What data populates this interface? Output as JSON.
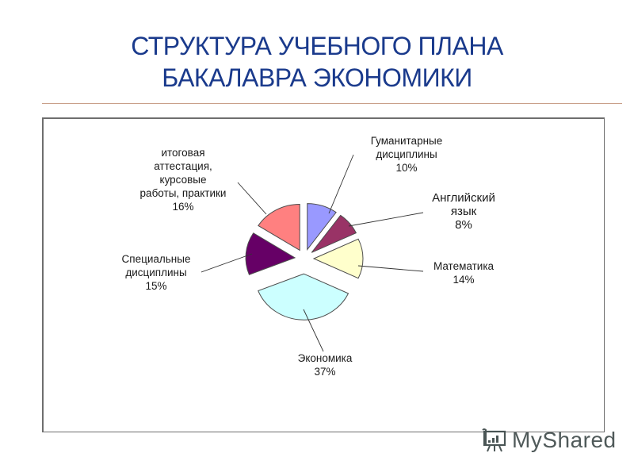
{
  "title": {
    "line1": "СТРУКТУРА УЧЕБНОГО ПЛАНА",
    "line2": "БАКАЛАВРА ЭКОНОМИКИ"
  },
  "labels": {
    "humanities": {
      "name1": "Гуманитарные",
      "name2": "дисциплины",
      "pct": "10%"
    },
    "english": {
      "name1": "Английский",
      "name2": "язык",
      "pct": "8%"
    },
    "math": {
      "name1": "Математика",
      "pct": "14%"
    },
    "economics": {
      "name1": "Экономика",
      "pct": "37%"
    },
    "special": {
      "name1": "Специальные",
      "name2": "дисциплины",
      "pct": "15%"
    },
    "final": {
      "name1": "итоговая",
      "name2": "аттестация,",
      "name3": "курсовые",
      "name4": "работы, практики",
      "pct": "16%"
    }
  },
  "watermark": {
    "text": "MyShared",
    "icon": "presentation-board-icon"
  },
  "chart_data": {
    "type": "pie",
    "title": "СТРУКТУРА УЧЕБНОГО ПЛАНА БАКАЛАВРА ЭКОНОМИКИ",
    "exploded": true,
    "start_angle": "12 o'clock, clockwise",
    "categories": [
      "Гуманитарные дисциплины",
      "Английский язык",
      "Математика",
      "Экономика",
      "Специальные дисциплины",
      "итоговая аттестация, курсовые работы, практики"
    ],
    "values": [
      10,
      8,
      14,
      37,
      15,
      16
    ],
    "unit": "%",
    "colors": [
      "#9999ff",
      "#993366",
      "#ffffcc",
      "#ccffff",
      "#660066",
      "#ff8080"
    ],
    "legend": "none (data labels with leader lines)"
  }
}
